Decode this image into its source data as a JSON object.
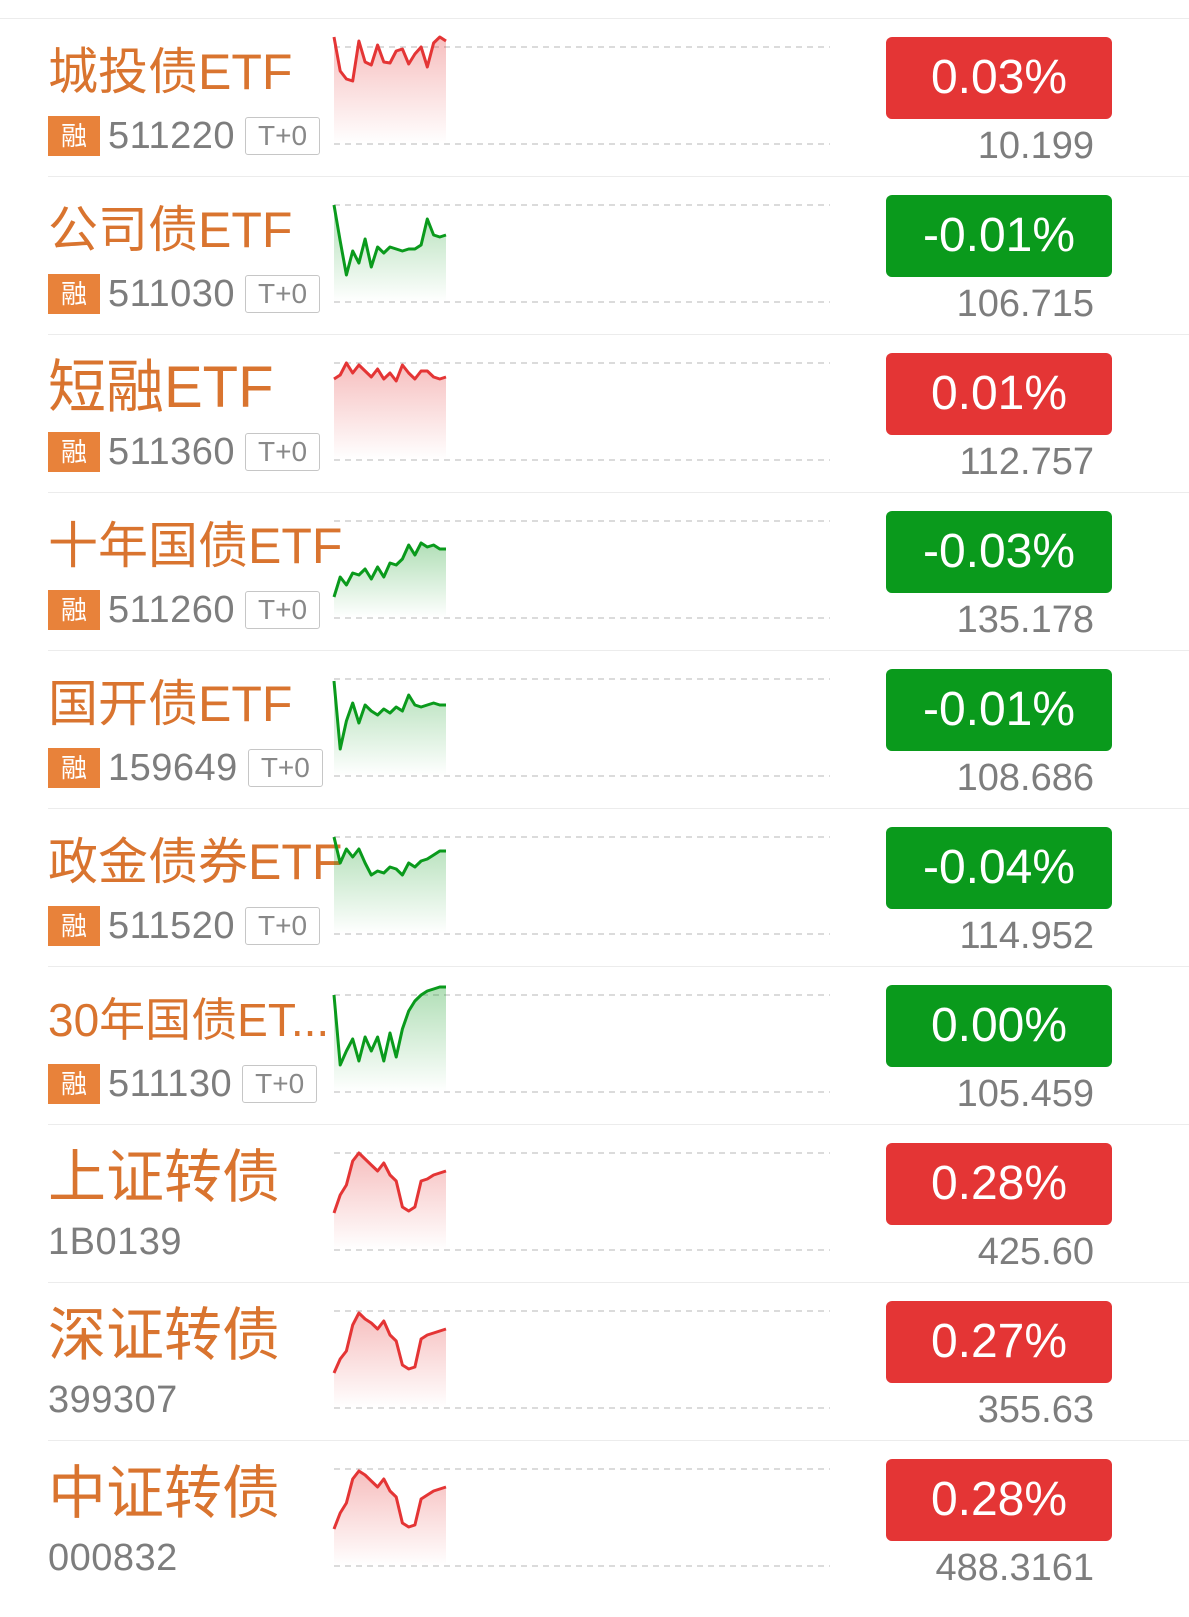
{
  "colors": {
    "up": "#e43535",
    "down": "#0a9a1c",
    "name": "#d9742f",
    "tag": "#e8823a",
    "muted": "#7d7d7d"
  },
  "items": [
    {
      "name": "城投债ETF",
      "rong": "融",
      "code": "511220",
      "t0": "T+0",
      "change": "0.03%",
      "price": "10.199",
      "direction": "up",
      "spark": [
        18,
        52,
        60,
        62,
        22,
        43,
        46,
        26,
        43,
        44,
        32,
        30,
        45,
        35,
        28,
        48,
        24,
        18,
        22
      ]
    },
    {
      "name": "公司债ETF",
      "rong": "融",
      "code": "511030",
      "t0": "T+0",
      "change": "-0.01%",
      "price": "106.715",
      "direction": "down",
      "spark": [
        28,
        64,
        98,
        74,
        86,
        62,
        90,
        70,
        76,
        70,
        72,
        74,
        72,
        72,
        68,
        42,
        58,
        60,
        58
      ]
    },
    {
      "name": "短融ETF",
      "rong": "融",
      "code": "511360",
      "t0": "T+0",
      "change": "0.01%",
      "price": "112.757",
      "direction": "up",
      "spark": [
        44,
        40,
        28,
        38,
        30,
        36,
        42,
        34,
        44,
        38,
        46,
        30,
        38,
        44,
        36,
        36,
        42,
        44,
        42
      ]
    },
    {
      "name": "十年国债ETF",
      "rong": "融",
      "code": "511260",
      "t0": "T+0",
      "change": "-0.03%",
      "price": "135.178",
      "direction": "down",
      "spark": [
        104,
        84,
        92,
        80,
        82,
        76,
        86,
        74,
        84,
        70,
        72,
        66,
        52,
        62,
        50,
        54,
        52,
        56,
        56
      ]
    },
    {
      "name": "国开债ETF",
      "rong": "融",
      "code": "159649",
      "t0": "T+0",
      "change": "-0.01%",
      "price": "108.686",
      "direction": "down",
      "spark": [
        30,
        98,
        70,
        52,
        72,
        54,
        60,
        64,
        58,
        62,
        56,
        60,
        44,
        54,
        56,
        54,
        52,
        54,
        54
      ]
    },
    {
      "name": "政金债券ETF",
      "rong": "融",
      "code": "511520",
      "t0": "T+0",
      "change": "-0.04%",
      "price": "114.952",
      "direction": "down",
      "spark": [
        28,
        54,
        40,
        48,
        40,
        54,
        66,
        62,
        64,
        58,
        60,
        66,
        54,
        58,
        52,
        50,
        46,
        42,
        42
      ]
    },
    {
      "name": "30年国债ET...",
      "rong": "融",
      "code": "511130",
      "t0": "T+0",
      "change": "0.00%",
      "price": "105.459",
      "direction": "down",
      "spark": [
        28,
        98,
        84,
        72,
        94,
        70,
        84,
        70,
        94,
        66,
        90,
        62,
        44,
        34,
        28,
        24,
        22,
        20,
        20
      ]
    },
    {
      "name": "上证转债",
      "code": "1B0139",
      "change": "0.28%",
      "price": "425.60",
      "direction": "up",
      "spark": [
        88,
        70,
        60,
        36,
        28,
        34,
        40,
        46,
        38,
        50,
        56,
        82,
        86,
        82,
        56,
        54,
        50,
        48,
        46
      ]
    },
    {
      "name": "深证转债",
      "code": "399307",
      "change": "0.27%",
      "price": "355.63",
      "direction": "up",
      "spark": [
        90,
        76,
        68,
        42,
        30,
        36,
        40,
        46,
        38,
        52,
        58,
        82,
        86,
        84,
        56,
        52,
        50,
        48,
        46
      ]
    },
    {
      "name": "中证转债",
      "code": "000832",
      "change": "0.28%",
      "price": "488.3161",
      "direction": "up",
      "spark": [
        88,
        72,
        62,
        38,
        30,
        34,
        40,
        46,
        38,
        50,
        56,
        82,
        86,
        84,
        58,
        54,
        50,
        48,
        46
      ]
    }
  ]
}
